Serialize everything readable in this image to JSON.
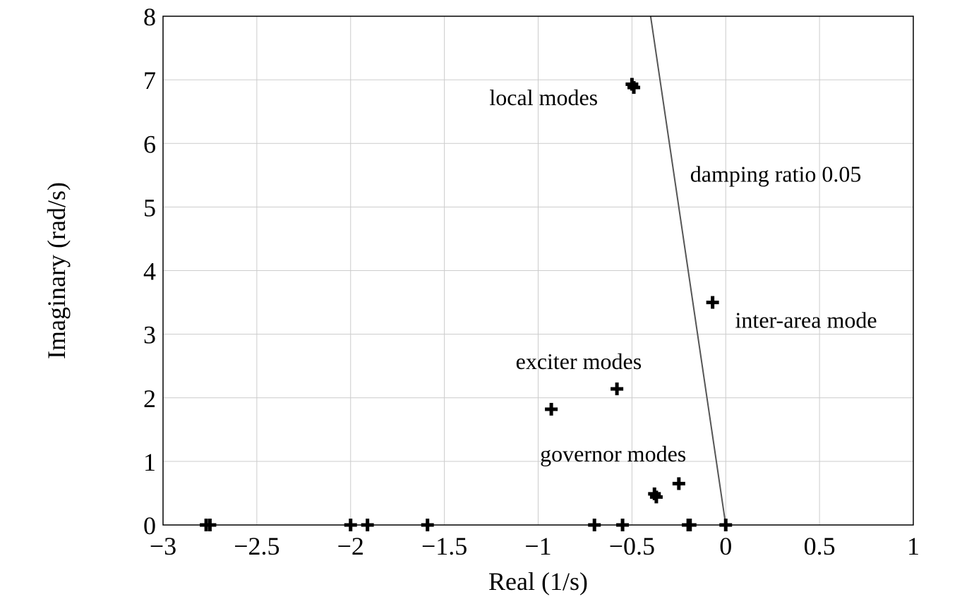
{
  "chart_data": {
    "type": "scatter",
    "xlabel": "Real (1/s)",
    "ylabel": "Imaginary (rad/s)",
    "xlim": [
      -3,
      1
    ],
    "ylim": [
      0,
      8
    ],
    "x_ticks": [
      -3,
      -2.5,
      -2,
      -1.5,
      -1,
      -0.5,
      0,
      0.5,
      1
    ],
    "x_tick_labels": [
      "−3",
      "−2.5",
      "−2",
      "−1.5",
      "−1",
      "−0.5",
      "0",
      "0.5",
      "1"
    ],
    "y_ticks": [
      0,
      1,
      2,
      3,
      4,
      5,
      6,
      7,
      8
    ],
    "y_tick_labels": [
      "0",
      "1",
      "2",
      "3",
      "4",
      "5",
      "6",
      "7",
      "8"
    ],
    "grid": true,
    "marker": "plus",
    "points": [
      {
        "x": -2.77,
        "y": 0
      },
      {
        "x": -2.75,
        "y": 0
      },
      {
        "x": -2.0,
        "y": 0
      },
      {
        "x": -1.91,
        "y": 0
      },
      {
        "x": -1.59,
        "y": 0
      },
      {
        "x": -0.7,
        "y": 0
      },
      {
        "x": -0.55,
        "y": 0
      },
      {
        "x": -0.2,
        "y": 0
      },
      {
        "x": -0.19,
        "y": 0
      },
      {
        "x": 0.0,
        "y": 0
      },
      {
        "x": -0.37,
        "y": 0.44
      },
      {
        "x": -0.38,
        "y": 0.49
      },
      {
        "x": -0.25,
        "y": 0.65
      },
      {
        "x": -0.93,
        "y": 1.82
      },
      {
        "x": -0.58,
        "y": 2.14
      },
      {
        "x": -0.07,
        "y": 3.5
      },
      {
        "x": -0.5,
        "y": 6.93
      },
      {
        "x": -0.49,
        "y": 6.88
      }
    ],
    "damping_line": {
      "label": "damping ratio 0.05",
      "zeta": 0.05
    },
    "annotations": [
      {
        "text": "local modes",
        "x": -1.26,
        "y": 6.6
      },
      {
        "text": "damping ratio 0.05",
        "x": -0.19,
        "y": 5.4
      },
      {
        "text": "inter-area mode",
        "x": 0.05,
        "y": 3.1
      },
      {
        "text": "exciter modes",
        "x": -1.12,
        "y": 2.45
      },
      {
        "text": "governor modes",
        "x": -0.99,
        "y": 1.0
      }
    ]
  }
}
